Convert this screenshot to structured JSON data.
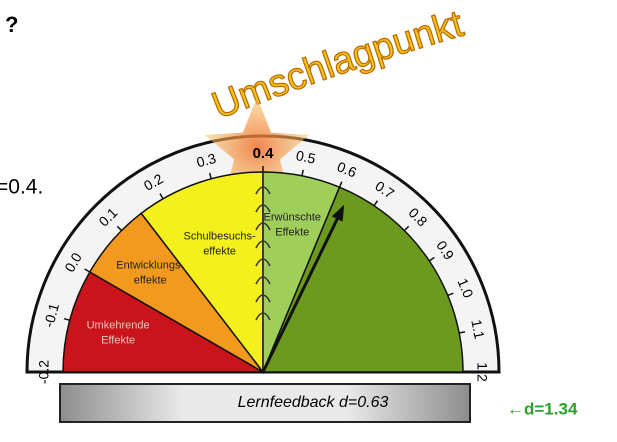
{
  "header": {
    "question_mark": "?",
    "partial_text": "=0.4."
  },
  "hinge_title": "Umschlagpunkt",
  "gauge": {
    "scale": [
      -0.2,
      -0.1,
      {
        "value": 0,
        "label": "0.0"
      },
      0.1,
      0.2,
      0.3,
      0.4,
      0.5,
      0.6,
      0.7,
      0.8,
      0.9,
      {
        "value": 1,
        "label": "1.0"
      },
      1.1,
      1.2
    ],
    "hinge": 0.4,
    "zones": [
      {
        "lines": [
          "Umkehrende",
          "Effekte"
        ],
        "from": -0.2,
        "to": 0,
        "color": "#c8141a"
      },
      {
        "lines": [
          "Entwicklungs-",
          "effekte"
        ],
        "from": 0,
        "to": 0.15,
        "color": "#f39a1e"
      },
      {
        "lines": [
          "Schulbesuchs-",
          "effekte"
        ],
        "from": 0.15,
        "to": 0.4,
        "color": "#f4f01c"
      },
      {
        "lines": [
          "Erwünschte",
          "Effekte"
        ],
        "from": 0.4,
        "to": 0.6,
        "color": "#9fcf5a"
      },
      {
        "lines": [],
        "from": 0.6,
        "to": 1.2,
        "color": "#6b9a1e"
      }
    ],
    "needle": 0.63,
    "needle_label": "Lernfeedback d=0.63",
    "side_label": "←d=1.34"
  }
}
